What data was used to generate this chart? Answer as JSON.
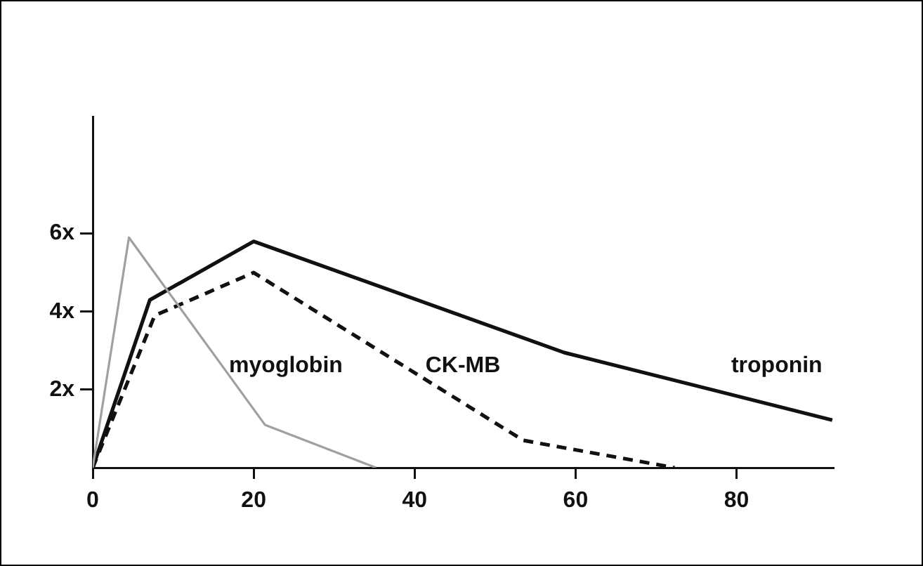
{
  "chart_data": {
    "type": "line",
    "xlim": [
      0,
      92
    ],
    "xticks": [
      0,
      20,
      40,
      60,
      80
    ],
    "ylim": [
      0,
      9
    ],
    "yticks": [
      {
        "value": 2,
        "label": "2x"
      },
      {
        "value": 4,
        "label": "4x"
      },
      {
        "value": 6,
        "label": "6x"
      }
    ],
    "grid": false,
    "legend": false,
    "marker": "none",
    "series": [
      {
        "name": "myoglobin",
        "color": "#a0a0a0",
        "x": [
          0,
          4.5,
          21.4,
          35.2
        ],
        "values": [
          0,
          5.9,
          1.1,
          0
        ]
      },
      {
        "name": "CK-MB",
        "color": "#111111",
        "line_style": "dashed",
        "x": [
          0,
          7.7,
          20,
          53.5,
          72.3
        ],
        "values": [
          0,
          3.9,
          5.0,
          0.7,
          0
        ]
      },
      {
        "name": "troponin",
        "color": "#111111",
        "line_style": "solid",
        "x": [
          0,
          7.1,
          20,
          58.6,
          91.9
        ],
        "values": [
          0,
          4.3,
          5.8,
          2.95,
          1.22
        ]
      }
    ]
  }
}
